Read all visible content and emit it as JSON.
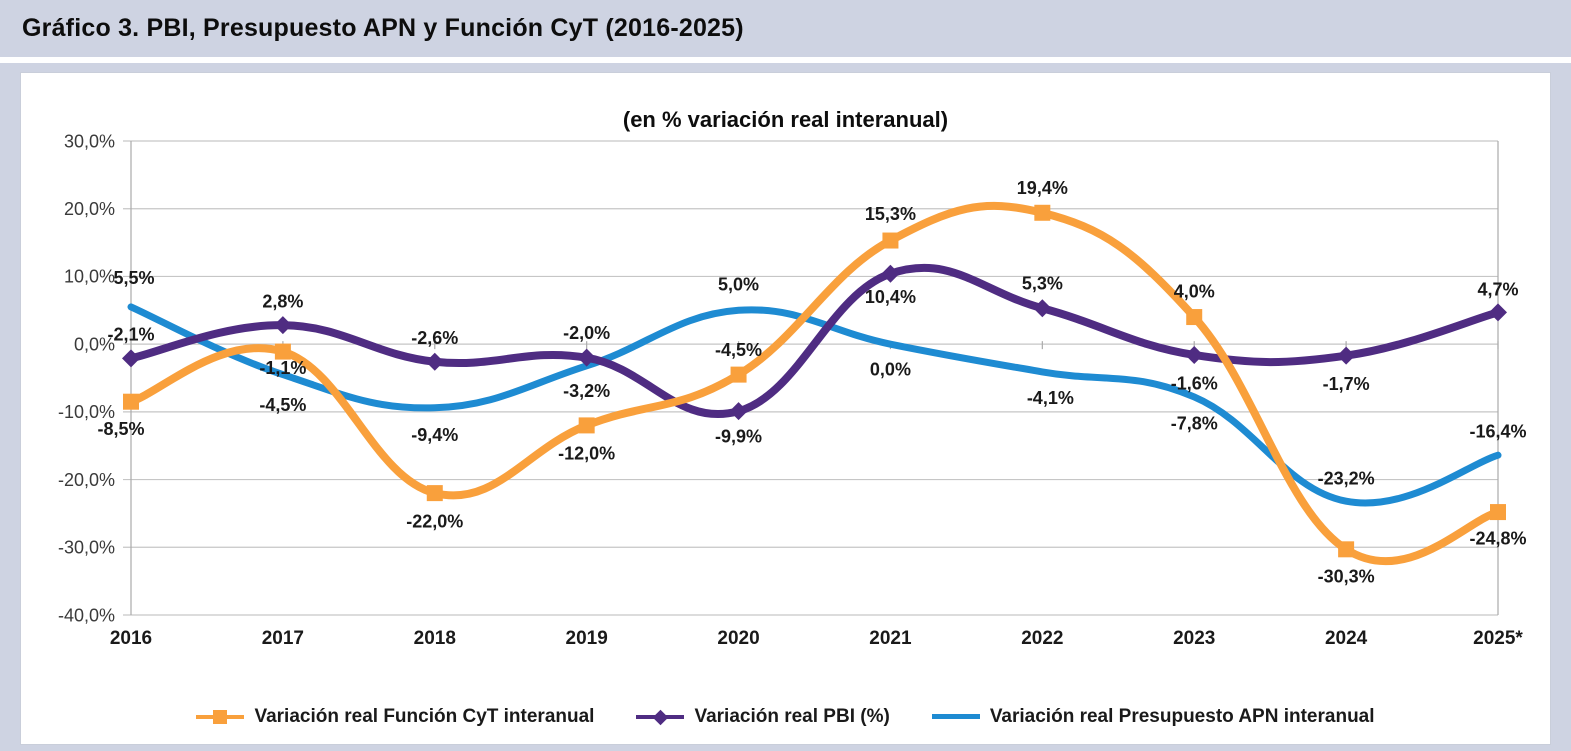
{
  "header": {
    "title": "Gráfico 3. PBI, Presupuesto APN y Función CyT (2016-2025)"
  },
  "chart_data": {
    "type": "line",
    "title": "(en % variación real interanual)",
    "xlabel": "",
    "ylabel": "",
    "smoothed": true,
    "grid": "horizontal",
    "legend_position": "bottom",
    "ylim": [
      -40,
      30
    ],
    "y_ticks": [
      "30,0%",
      "20,0%",
      "10,0%",
      "0,0%",
      "-10,0%",
      "-20,0%",
      "-30,0%",
      "-40,0%"
    ],
    "categories": [
      "2016",
      "2017",
      "2018",
      "2019",
      "2020",
      "2021",
      "2022",
      "2023",
      "2024",
      "2025*"
    ],
    "series": [
      {
        "name": "Variación real Función CyT interanual",
        "color": "#F9A03C",
        "marker": "square",
        "values": [
          -8.5,
          -1.1,
          -22.0,
          -12.0,
          -4.5,
          15.3,
          19.4,
          4.0,
          -30.3,
          -24.8
        ],
        "labels": [
          "-8,5%",
          "-1,1%",
          "-22,0%",
          "-12,0%",
          "-4,5%",
          "15,3%",
          "19,4%",
          "4,0%",
          "-30,3%",
          "-24,8%"
        ]
      },
      {
        "name": "Variación real PBI (%)",
        "color": "#4F2C82",
        "marker": "diamond",
        "values": [
          -2.1,
          2.8,
          -2.6,
          -2.0,
          -9.9,
          10.4,
          5.3,
          -1.6,
          -1.7,
          4.7
        ],
        "labels": [
          "-2,1%",
          "2,8%",
          "-2,6%",
          "-2,0%",
          "-9,9%",
          "10,4%",
          "5,3%",
          "-1,6%",
          "-1,7%",
          "4,7%"
        ]
      },
      {
        "name": "Variación real Presupuesto APN interanual",
        "color": "#1E8BD2",
        "marker": "none",
        "values": [
          5.5,
          -4.5,
          -9.4,
          -3.2,
          5.0,
          0.0,
          -4.1,
          -7.8,
          -23.2,
          -16.4
        ],
        "labels": [
          "5,5%",
          "-4,5%",
          "-9,4%",
          "-3,2%",
          "5,0%",
          "0,0%",
          "-4,1%",
          "-7,8%",
          "-23,2%",
          "-16,4%"
        ]
      }
    ]
  }
}
